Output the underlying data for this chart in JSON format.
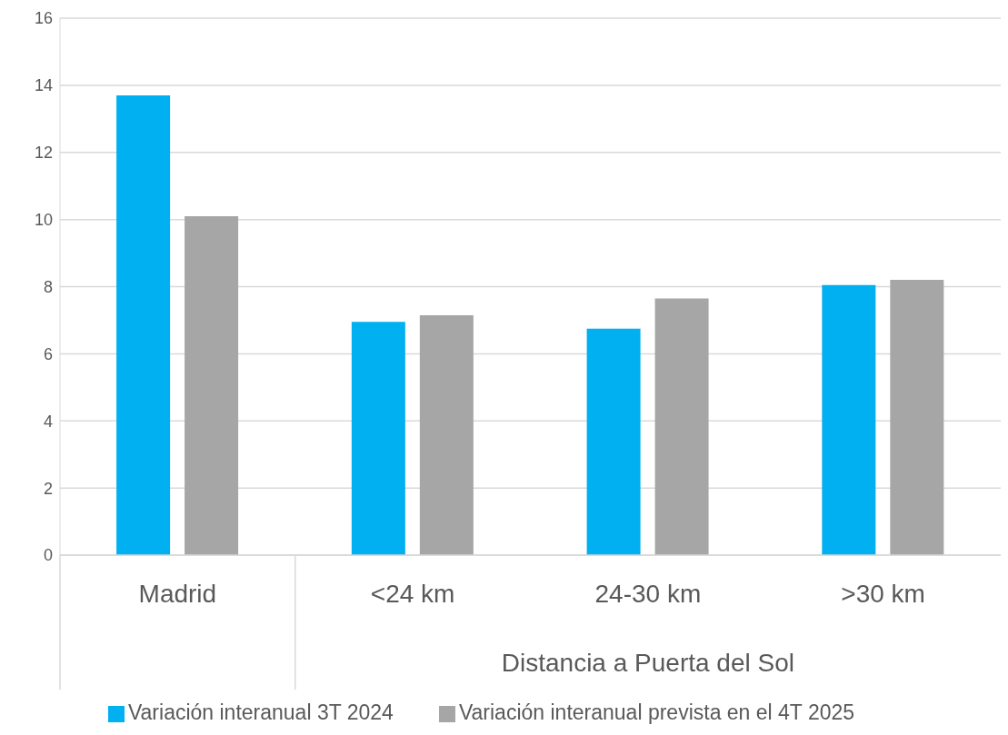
{
  "chart_data": {
    "type": "bar",
    "categories": [
      "Madrid",
      "<24 km",
      "24-30 km",
      ">30 km"
    ],
    "xlabel": "Distancia a Puerta del Sol",
    "series": [
      {
        "name": "Variación interanual 3T 2024",
        "color": "#00b0f0",
        "values": [
          13.7,
          6.95,
          6.75,
          8.05
        ]
      },
      {
        "name": "Variación interanual prevista en el 4T 2025",
        "color": "#a6a6a6",
        "values": [
          10.1,
          7.15,
          7.65,
          8.2
        ]
      }
    ],
    "ylim": [
      0,
      16
    ],
    "yticks": [
      0,
      2,
      4,
      6,
      8,
      10,
      12,
      14,
      16
    ],
    "grid": "y",
    "legend": "bottom"
  }
}
